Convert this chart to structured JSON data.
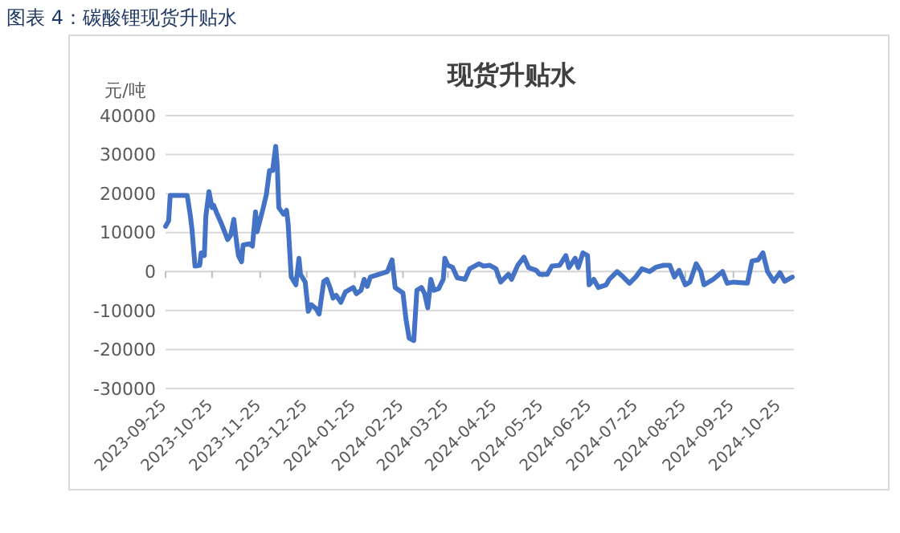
{
  "chart_data": {
    "type": "line",
    "title": "图表 4：碳酸锂现货升贴水",
    "subtitle": "现货升贴水",
    "ylabel": "元/吨",
    "x": [
      "2023-09-25",
      "2023-09-27",
      "2023-09-28",
      "2023-10-09",
      "2023-10-11",
      "2023-10-12",
      "2023-10-14",
      "2023-10-17",
      "2023-10-18",
      "2023-10-20",
      "2023-10-21",
      "2023-10-23",
      "2023-10-25",
      "2023-10-26",
      "2023-10-28",
      "2023-10-31",
      "2023-11-04",
      "2023-11-06",
      "2023-11-08",
      "2023-11-10",
      "2023-11-11",
      "2023-11-13",
      "2023-11-14",
      "2023-11-18",
      "2023-11-20",
      "2023-11-22",
      "2023-11-23",
      "2023-11-27",
      "2023-11-29",
      "2023-12-01",
      "2023-12-03",
      "2023-12-05",
      "2023-12-06",
      "2023-12-07",
      "2023-12-10",
      "2023-12-12",
      "2023-12-13",
      "2023-12-15",
      "2023-12-18",
      "2023-12-20",
      "2023-12-21",
      "2023-12-24",
      "2023-12-26",
      "2023-12-28",
      "2023-12-31",
      "2024-01-02",
      "2024-01-05",
      "2024-01-07",
      "2024-01-09",
      "2024-01-11",
      "2024-01-13",
      "2024-01-16",
      "2024-01-19",
      "2024-01-24",
      "2024-01-26",
      "2024-01-29",
      "2024-01-31",
      "2024-02-02",
      "2024-02-04",
      "2024-02-15",
      "2024-02-18",
      "2024-02-20",
      "2024-02-25",
      "2024-02-27",
      "2024-02-29",
      "2024-03-03",
      "2024-03-05",
      "2024-03-08",
      "2024-03-10",
      "2024-03-12",
      "2024-03-14",
      "2024-03-16",
      "2024-03-19",
      "2024-03-22",
      "2024-03-23",
      "2024-03-25",
      "2024-03-28",
      "2024-03-31",
      "2024-04-05",
      "2024-04-08",
      "2024-04-14",
      "2024-04-17",
      "2024-04-21",
      "2024-04-25",
      "2024-04-28",
      "2024-05-03",
      "2024-05-05",
      "2024-05-09",
      "2024-05-13",
      "2024-05-16",
      "2024-05-21",
      "2024-05-23",
      "2024-05-28",
      "2024-05-31",
      "2024-06-05",
      "2024-06-09",
      "2024-06-11",
      "2024-06-15",
      "2024-06-17",
      "2024-06-20",
      "2024-06-23",
      "2024-06-24",
      "2024-06-27",
      "2024-06-30",
      "2024-07-05",
      "2024-07-07",
      "2024-07-12",
      "2024-07-16",
      "2024-07-20",
      "2024-07-24",
      "2024-07-28",
      "2024-08-02",
      "2024-08-06",
      "2024-08-11",
      "2024-08-15",
      "2024-08-18",
      "2024-08-21",
      "2024-08-25",
      "2024-08-28",
      "2024-09-01",
      "2024-09-04",
      "2024-09-06",
      "2024-09-12",
      "2024-09-18",
      "2024-09-21",
      "2024-09-25",
      "2024-10-04",
      "2024-10-07",
      "2024-10-11",
      "2024-10-14",
      "2024-10-17",
      "2024-10-21",
      "2024-10-25",
      "2024-10-28",
      "2024-11-02"
    ],
    "series": [
      {
        "color": "#4472c4",
        "values": [
          11600,
          13000,
          19500,
          19500,
          14300,
          11000,
          1400,
          1600,
          4800,
          4100,
          14300,
          20500,
          16400,
          17000,
          15000,
          12300,
          8200,
          9300,
          13400,
          6800,
          4100,
          2500,
          6800,
          7100,
          6500,
          15300,
          10200,
          16400,
          19800,
          25900,
          25900,
          32100,
          27300,
          16400,
          14700,
          15700,
          12300,
          -1400,
          -3400,
          3400,
          -700,
          -2700,
          -10200,
          -8500,
          -9500,
          -10900,
          -2500,
          -2000,
          -4100,
          -6800,
          -6100,
          -7900,
          -5200,
          -4100,
          -5700,
          -4800,
          -2000,
          -3800,
          -1400,
          0,
          3000,
          -4100,
          -5500,
          -12300,
          -17100,
          -17700,
          -4800,
          -4100,
          -5700,
          -9300,
          -2000,
          -4800,
          -4400,
          -2000,
          3400,
          1600,
          1100,
          -1600,
          -2000,
          700,
          2000,
          1400,
          1600,
          700,
          -2700,
          -700,
          -2000,
          1600,
          3700,
          1000,
          300,
          -700,
          -700,
          1400,
          1600,
          4100,
          1000,
          3400,
          1000,
          4800,
          4100,
          -3400,
          -2000,
          -4100,
          -3400,
          -2000,
          0,
          -1400,
          -3000,
          -1400,
          700,
          0,
          1100,
          1600,
          1600,
          -1400,
          300,
          -3400,
          -2700,
          2000,
          0,
          -3400,
          -2000,
          0,
          -3000,
          -2700,
          -3000,
          2700,
          3000,
          4800,
          0,
          -2500,
          -300,
          -2500,
          -1400
        ]
      }
    ],
    "xlim": [
      "2023-09-25",
      "2024-11-03"
    ],
    "xticks": [
      "2023-09-25",
      "2023-10-25",
      "2023-11-25",
      "2023-12-25",
      "2024-01-25",
      "2024-02-25",
      "2024-03-25",
      "2024-04-25",
      "2024-05-25",
      "2024-06-25",
      "2024-07-25",
      "2024-08-25",
      "2024-09-25",
      "2024-10-25"
    ],
    "ylim": [
      -30000,
      40000
    ],
    "yticks": [
      -30000,
      -20000,
      -10000,
      0,
      10000,
      20000,
      30000,
      40000
    ],
    "grid": "y",
    "marker": "none",
    "line_style": "solid"
  }
}
